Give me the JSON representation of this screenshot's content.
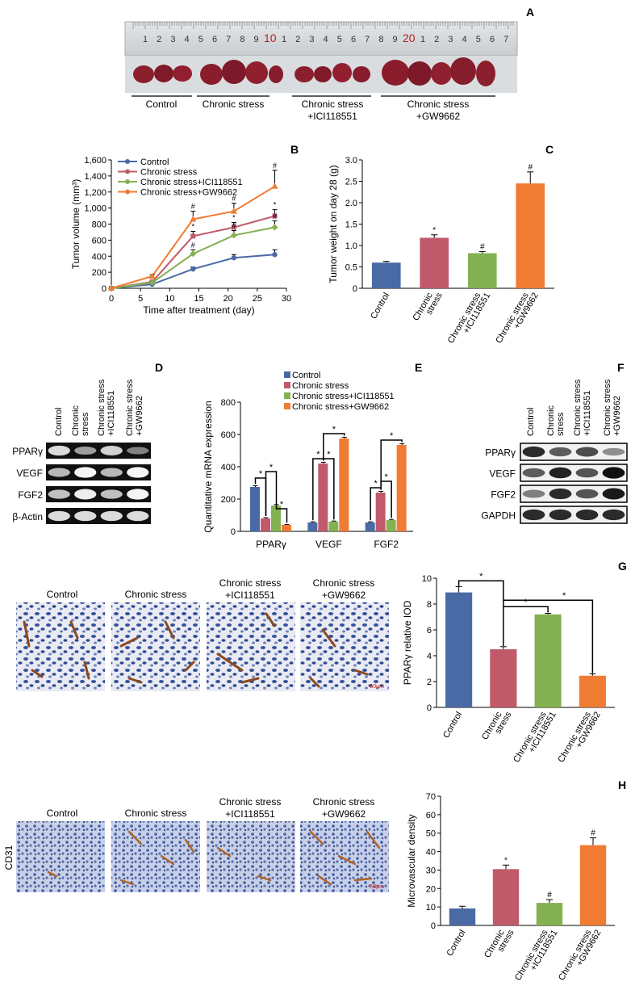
{
  "colors": {
    "control": "#4a6aa5",
    "stress": "#c05a6a",
    "ici": "#84b152",
    "gw": "#f07b32"
  },
  "panels": {
    "a": "A",
    "b": "B",
    "c": "C",
    "d": "D",
    "e": "E",
    "f": "F",
    "g": "G",
    "h": "H"
  },
  "panel_a": {
    "ruler_numbers": [
      "1",
      "2",
      "3",
      "4",
      "5",
      "6",
      "7",
      "8",
      "9",
      "10",
      "1",
      "2",
      "3",
      "4",
      "5",
      "6",
      "7",
      "8",
      "9",
      "20",
      "1",
      "2",
      "3",
      "4",
      "5",
      "6",
      "7"
    ],
    "groups": [
      "Control",
      "Chronic stress",
      "Chronic stress\n+ICI118551",
      "Chronic stress\n+GW9662"
    ]
  },
  "groups": {
    "control": "Control",
    "stress": "Chronic stress",
    "stress_l1": "Chronic",
    "stress_l2": "stress",
    "ici_l1": "Chronic stress",
    "ici_l2": "+ICI118551",
    "gw_l1": "Chronic stress",
    "gw_l2": "+GW9662"
  },
  "gel_d": {
    "rows": [
      "PPARγ",
      "VEGF",
      "FGF2",
      "β-Actin"
    ]
  },
  "gel_f": {
    "rows": [
      "PPARγ",
      "VEGF",
      "FGF2",
      "GAPDH"
    ]
  },
  "ihc": {
    "scale": "50μm",
    "cd31": "CD31"
  },
  "chart_data": [
    {
      "panel": "B",
      "type": "line",
      "xlabel": "Time after treatment (day)",
      "ylabel": "Tumor volume (mm³)",
      "xlim": [
        0,
        30
      ],
      "ylim": [
        0,
        1600
      ],
      "xticks": [
        "0",
        "5",
        "10",
        "15",
        "20",
        "25",
        "30"
      ],
      "yticks": [
        "0",
        "200",
        "400",
        "600",
        "800",
        "1,000",
        "1,200",
        "1,400",
        "1,600"
      ],
      "x": [
        0,
        7,
        14,
        21,
        28
      ],
      "series": [
        {
          "name": "Control",
          "values": [
            0,
            50,
            240,
            380,
            420
          ],
          "errors": [
            0,
            10,
            25,
            40,
            60
          ],
          "marker": "circle"
        },
        {
          "name": "Chronic stress",
          "values": [
            0,
            80,
            650,
            760,
            900
          ],
          "errors": [
            0,
            15,
            60,
            60,
            80
          ],
          "marker": "square",
          "sig": [
            "",
            "",
            "*",
            "*",
            "*"
          ]
        },
        {
          "name": "Chronic stress+ICI118551",
          "values": [
            0,
            70,
            430,
            660,
            760
          ],
          "errors": [
            0,
            15,
            50,
            60,
            80
          ],
          "marker": "diamond",
          "sig": [
            "",
            "",
            "#",
            "#",
            "#"
          ]
        },
        {
          "name": "Chronic stress+GW9662",
          "values": [
            0,
            150,
            860,
            960,
            1270
          ],
          "errors": [
            0,
            20,
            100,
            100,
            200
          ],
          "marker": "triangle",
          "sig": [
            "",
            "",
            "#",
            "#",
            "#"
          ]
        }
      ],
      "legend": "top-left"
    },
    {
      "panel": "C",
      "type": "bar",
      "ylabel": "Tumor weight on day 28 (g)",
      "ylim": [
        0,
        3.0
      ],
      "yticks": [
        "0",
        "0.5",
        "1.0",
        "1.5",
        "2.0",
        "2.5",
        "3.0"
      ],
      "categories": [
        "Control",
        "Chronic stress",
        "Chronic stress +ICI118551",
        "Chronic stress +GW9662"
      ],
      "values": [
        0.6,
        1.18,
        0.82,
        2.45
      ],
      "errors": [
        0.03,
        0.07,
        0.04,
        0.27
      ],
      "sig": [
        "",
        "*",
        "#",
        "#"
      ]
    },
    {
      "panel": "E",
      "type": "bar",
      "ylabel": "Quantitative mRNA expression",
      "ylim": [
        0,
        800
      ],
      "yticks": [
        "0",
        "200",
        "400",
        "600",
        "800"
      ],
      "categories": [
        "PPARγ",
        "VEGF",
        "FGF2"
      ],
      "series": [
        {
          "name": "Control",
          "values": [
            275,
            55,
            55
          ],
          "errors": [
            8,
            4,
            4
          ]
        },
        {
          "name": "Chronic stress",
          "values": [
            80,
            420,
            240
          ],
          "errors": [
            5,
            8,
            8
          ]
        },
        {
          "name": "Chronic stress+ICI118551",
          "values": [
            160,
            60,
            70
          ],
          "errors": [
            6,
            4,
            4
          ]
        },
        {
          "name": "Chronic stress+GW9662",
          "values": [
            40,
            575,
            535
          ],
          "errors": [
            3,
            8,
            8
          ]
        }
      ],
      "legend": "top"
    },
    {
      "panel": "G",
      "type": "bar",
      "ylabel": "PPARγ relative IOD",
      "ylim": [
        0,
        10
      ],
      "yticks": [
        "0",
        "2",
        "4",
        "6",
        "8",
        "10"
      ],
      "categories": [
        "Control",
        "Chronic stress",
        "Chronic stress +ICI118551",
        "Chronic stress +GW9662"
      ],
      "values": [
        8.9,
        4.5,
        7.2,
        2.45
      ],
      "errors": [
        0.45,
        0.2,
        0.08,
        0.15
      ]
    },
    {
      "panel": "H",
      "type": "bar",
      "ylabel": "Microvascular density",
      "ylim": [
        0,
        70
      ],
      "yticks": [
        "0",
        "10",
        "20",
        "30",
        "40",
        "50",
        "60",
        "70"
      ],
      "categories": [
        "Control",
        "Chronic stress",
        "Chronic stress +ICI118551",
        "Chronic stress +GW9662"
      ],
      "values": [
        9.2,
        30.5,
        12.2,
        43.5
      ],
      "errors": [
        1.2,
        2.2,
        1.8,
        4.0
      ],
      "sig": [
        "",
        "*",
        "#",
        "#"
      ]
    }
  ]
}
